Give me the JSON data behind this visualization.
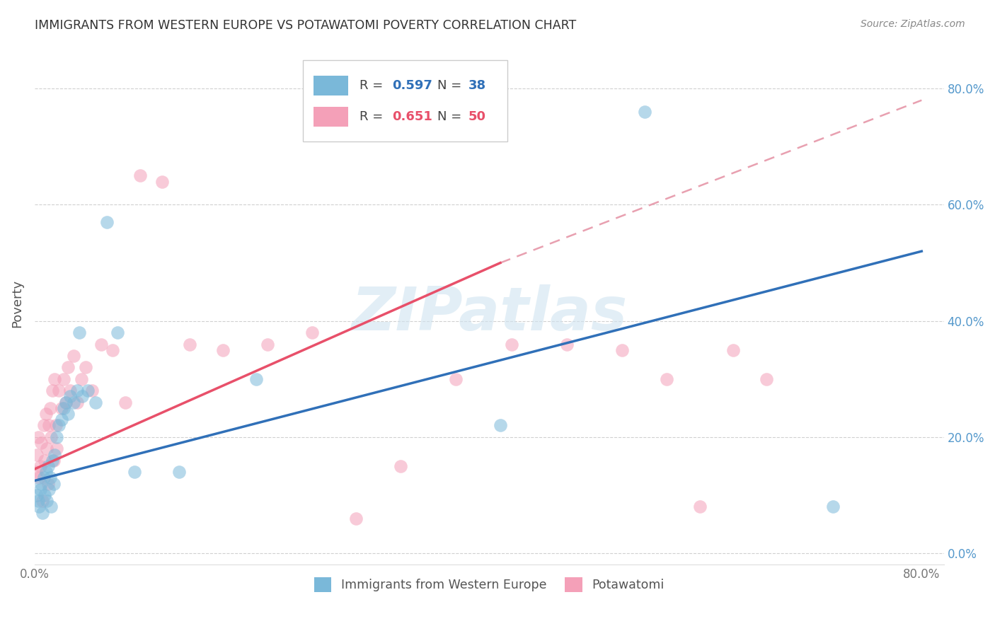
{
  "title": "IMMIGRANTS FROM WESTERN EUROPE VS POTAWATOMI POVERTY CORRELATION CHART",
  "source": "Source: ZipAtlas.com",
  "ylabel": "Poverty",
  "yticks": [
    "0.0%",
    "20.0%",
    "40.0%",
    "60.0%",
    "80.0%"
  ],
  "ytick_vals": [
    0.0,
    0.2,
    0.4,
    0.6,
    0.8
  ],
  "xtick_labels": [
    "0.0%",
    "",
    "",
    "",
    "80.0%"
  ],
  "xtick_vals": [
    0.0,
    0.2,
    0.4,
    0.6,
    0.8
  ],
  "xlim": [
    0.0,
    0.82
  ],
  "ylim": [
    -0.02,
    0.88
  ],
  "legend_r1": "R = 0.597",
  "legend_n1": "N = 38",
  "legend_r2": "R = 0.651",
  "legend_n2": "N = 50",
  "blue_color": "#7ab8d9",
  "pink_color": "#f4a0b8",
  "blue_line_color": "#3070b8",
  "pink_line_color": "#e8506a",
  "dashed_line_color": "#e8a0b0",
  "watermark_color": "#d0e4f0",
  "background_color": "#ffffff",
  "grid_color": "#d0d0d0",
  "title_color": "#333333",
  "source_color": "#888888",
  "blue_line_x0": 0.0,
  "blue_line_y0": 0.125,
  "blue_line_x1": 0.8,
  "blue_line_y1": 0.52,
  "pink_line_x0": 0.0,
  "pink_line_y0": 0.145,
  "pink_line_x1": 0.42,
  "pink_line_y1": 0.5,
  "dashed_line_x0": 0.42,
  "dashed_line_y0": 0.5,
  "dashed_line_x1": 0.8,
  "dashed_line_y1": 0.78,
  "blue_scatter_x": [
    0.002,
    0.003,
    0.004,
    0.005,
    0.006,
    0.007,
    0.008,
    0.009,
    0.01,
    0.011,
    0.012,
    0.013,
    0.014,
    0.015,
    0.016,
    0.017,
    0.018,
    0.02,
    0.022,
    0.024,
    0.026,
    0.028,
    0.03,
    0.032,
    0.035,
    0.038,
    0.04,
    0.043,
    0.048,
    0.055,
    0.065,
    0.075,
    0.09,
    0.13,
    0.2,
    0.42,
    0.55,
    0.72
  ],
  "blue_scatter_y": [
    0.1,
    0.09,
    0.08,
    0.11,
    0.12,
    0.07,
    0.13,
    0.1,
    0.14,
    0.09,
    0.15,
    0.11,
    0.13,
    0.08,
    0.16,
    0.12,
    0.17,
    0.2,
    0.22,
    0.23,
    0.25,
    0.26,
    0.24,
    0.27,
    0.26,
    0.28,
    0.38,
    0.27,
    0.28,
    0.26,
    0.57,
    0.38,
    0.14,
    0.14,
    0.3,
    0.22,
    0.76,
    0.08
  ],
  "pink_scatter_x": [
    0.001,
    0.002,
    0.003,
    0.004,
    0.005,
    0.006,
    0.007,
    0.008,
    0.009,
    0.01,
    0.011,
    0.012,
    0.013,
    0.014,
    0.015,
    0.016,
    0.017,
    0.018,
    0.019,
    0.02,
    0.022,
    0.024,
    0.026,
    0.028,
    0.03,
    0.032,
    0.035,
    0.038,
    0.042,
    0.046,
    0.052,
    0.06,
    0.07,
    0.082,
    0.095,
    0.115,
    0.14,
    0.17,
    0.21,
    0.25,
    0.29,
    0.33,
    0.38,
    0.43,
    0.48,
    0.53,
    0.57,
    0.6,
    0.63,
    0.66
  ],
  "pink_scatter_y": [
    0.14,
    0.17,
    0.2,
    0.13,
    0.15,
    0.19,
    0.09,
    0.22,
    0.16,
    0.24,
    0.18,
    0.12,
    0.22,
    0.25,
    0.2,
    0.28,
    0.16,
    0.3,
    0.22,
    0.18,
    0.28,
    0.25,
    0.3,
    0.26,
    0.32,
    0.28,
    0.34,
    0.26,
    0.3,
    0.32,
    0.28,
    0.36,
    0.35,
    0.26,
    0.65,
    0.64,
    0.36,
    0.35,
    0.36,
    0.38,
    0.06,
    0.15,
    0.3,
    0.36,
    0.36,
    0.35,
    0.3,
    0.08,
    0.35,
    0.3
  ]
}
